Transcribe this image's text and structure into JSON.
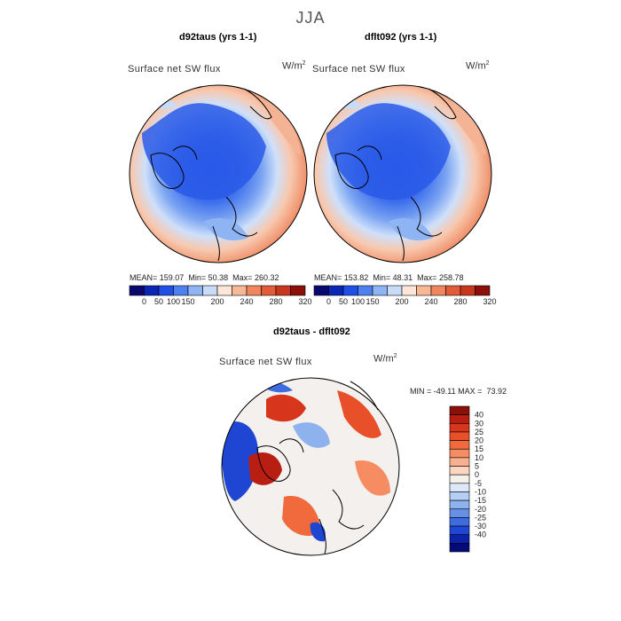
{
  "season": "JJA",
  "panels": [
    {
      "case_title": "d92taus (yrs 1-1)",
      "variable": "Surface net SW flux",
      "units": "W/m",
      "units_exp": "2",
      "stats": {
        "mean_label": "MEAN=",
        "mean": "159.07",
        "min_label": "Min=",
        "min": "50.38",
        "max_label": "Max=",
        "max": "260.32"
      }
    },
    {
      "case_title": "dflt092 (yrs 1-1)",
      "variable": "Surface net SW flux",
      "units": "W/m",
      "units_exp": "2",
      "stats": {
        "mean_label": "MEAN=",
        "mean": "153.82",
        "min_label": "Min=",
        "min": "48.31",
        "max_label": "Max=",
        "max": "258.78"
      }
    }
  ],
  "abs_colorbar": {
    "ticks": [
      "0",
      "50",
      "100",
      "150",
      "200",
      "240",
      "280",
      "320"
    ],
    "colors": [
      "#08086e",
      "#0a26b4",
      "#1f4fe6",
      "#4f80f0",
      "#8fb4f4",
      "#c8dcf8",
      "#fde6d8",
      "#f8b896",
      "#f0865e",
      "#e35c3a",
      "#c8361e",
      "#8c0f0a"
    ]
  },
  "diff_panel": {
    "title": "d92taus - dflt092",
    "variable": "Surface net SW flux",
    "units": "W/m",
    "units_exp": "2",
    "stats": {
      "min_label": "MIN =",
      "min": "-49.11",
      "max_label": "MAX =",
      "max": "73.92"
    }
  },
  "diff_colorbar": {
    "levels": [
      "40",
      "30",
      "25",
      "20",
      "15",
      "10",
      "5",
      "0",
      "-5",
      "-10",
      "-15",
      "-20",
      "-25",
      "-30",
      "-40"
    ],
    "colors": [
      "#8c0f0a",
      "#b81e12",
      "#d8361c",
      "#e8502a",
      "#f06a3e",
      "#f68c62",
      "#f9b08e",
      "#fcd6c0",
      "#f6f0ea",
      "#dce8f8",
      "#b4cef4",
      "#8eb2ee",
      "#6690e8",
      "#3e6ce0",
      "#1e46d2",
      "#0c22a8",
      "#050a78"
    ]
  }
}
